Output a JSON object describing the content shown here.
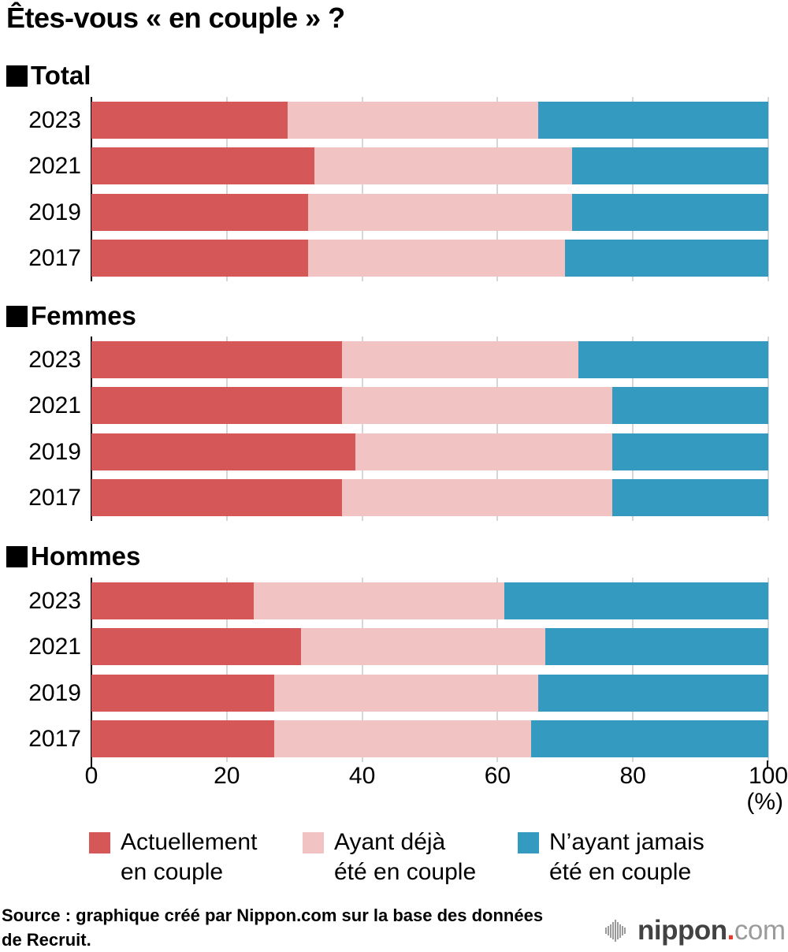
{
  "title": "Êtes-vous « en couple » ?",
  "colors": {
    "current": "#d55757",
    "past": "#f2c3c3",
    "never": "#349ac0",
    "grid": "#d6d6d6",
    "axis": "#000000",
    "logo_red": "#e8372c"
  },
  "chart_data": {
    "type": "bar",
    "stacked": true,
    "orientation": "horizontal",
    "xlim": [
      0,
      100
    ],
    "xticks": [
      "0",
      "20",
      "40",
      "60",
      "80",
      "100"
    ],
    "unit_label": "(%)",
    "grid": true,
    "legend_position": "bottom",
    "series_labels": [
      "Actuellement en couple",
      "Ayant déjà été en couple",
      "N’ayant jamais été en couple"
    ],
    "series_colors": [
      "#d55757",
      "#f2c3c3",
      "#349ac0"
    ],
    "groups": [
      {
        "label": "Total",
        "rows": [
          {
            "year": "2023",
            "values": [
              29,
              37,
              34
            ]
          },
          {
            "year": "2021",
            "values": [
              33,
              38,
              29
            ]
          },
          {
            "year": "2019",
            "values": [
              32,
              39,
              29
            ]
          },
          {
            "year": "2017",
            "values": [
              32,
              38,
              30
            ]
          }
        ]
      },
      {
        "label": "Femmes",
        "rows": [
          {
            "year": "2023",
            "values": [
              37,
              35,
              28
            ]
          },
          {
            "year": "2021",
            "values": [
              37,
              40,
              23
            ]
          },
          {
            "year": "2019",
            "values": [
              39,
              38,
              23
            ]
          },
          {
            "year": "2017",
            "values": [
              37,
              40,
              23
            ]
          }
        ]
      },
      {
        "label": "Hommes",
        "rows": [
          {
            "year": "2023",
            "values": [
              24,
              37,
              39
            ]
          },
          {
            "year": "2021",
            "values": [
              31,
              36,
              33
            ]
          },
          {
            "year": "2019",
            "values": [
              27,
              39,
              34
            ]
          },
          {
            "year": "2017",
            "values": [
              27,
              38,
              35
            ]
          }
        ]
      }
    ]
  },
  "legend": {
    "items": [
      {
        "label": "Actuellement\nen couple",
        "color": "#d55757"
      },
      {
        "label": "Ayant déjà\nété en couple",
        "color": "#f2c3c3"
      },
      {
        "label": "N’ayant jamais\nété en couple",
        "color": "#349ac0"
      }
    ]
  },
  "source": {
    "text": "Source : graphique créé par Nippon.com sur la base des données\nde Recruit."
  },
  "logo": {
    "name": "nippon",
    "dot": ".",
    "tld": "com",
    "icon": "soundwave-icon"
  }
}
